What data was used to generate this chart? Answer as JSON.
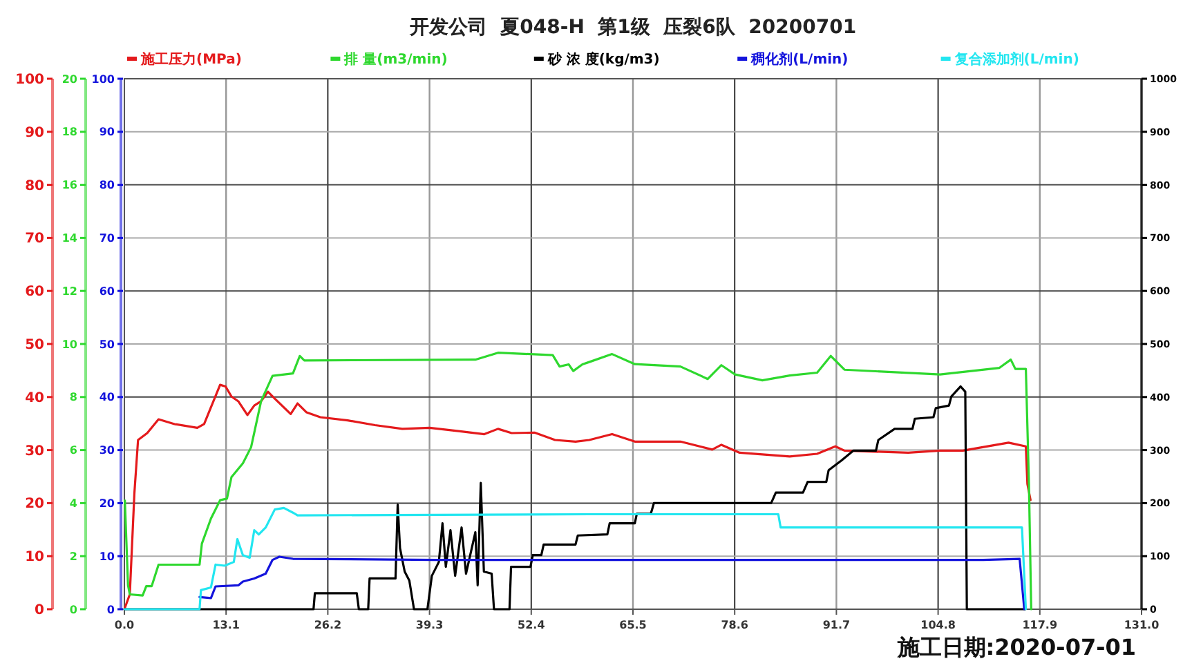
{
  "chart_data": [
    {
      "type": "line",
      "title": "开发公司  夏048-H  第1级  压裂6队  20200701",
      "annotations": [
        "施工日期:2020-07-01"
      ],
      "xlim": [
        0,
        131
      ],
      "xticks": [
        {
          "value": 0,
          "label": "0.0"
        },
        13.1,
        26.2,
        39.3,
        52.4,
        65.5,
        78.6,
        91.7,
        104.8,
        117.9,
        {
          "value": 131,
          "label": "131.0"
        }
      ],
      "ylim": [
        0,
        100
      ],
      "yticks": [
        0,
        10,
        20,
        30,
        40,
        50,
        60,
        70,
        80,
        90,
        100
      ],
      "y3lim": [
        0,
        20
      ],
      "y3ticks": [
        0,
        2,
        4,
        6,
        8,
        10,
        12,
        14,
        16,
        18,
        20
      ],
      "y2lim": [
        0,
        1000
      ],
      "y2ticks": [
        0,
        100,
        200,
        300,
        400,
        500,
        600,
        700,
        800,
        900,
        1000
      ],
      "grid": true,
      "legend": "top",
      "series": [
        {
          "name": "施工压力(MPa)",
          "color": "#e41a1c",
          "axis": "y",
          "x": [
            0,
            0.7,
            1.29,
            1.76,
            2.94,
            4.4,
            6.46,
            9.39,
            10.27,
            12.33,
            13.03,
            13.79,
            14.67,
            15.85,
            16.73,
            17.61,
            18.49,
            19.37,
            21.42,
            22.3,
            23.47,
            25.23,
            28.76,
            32.28,
            35.8,
            39.32,
            42.84,
            46.36,
            48.12,
            49.88,
            52.82,
            55.47,
            58.11,
            59.87,
            62.81,
            65.74,
            71.61,
            75.71,
            76.89,
            79.24,
            85.69,
            89.22,
            91.56,
            92.74,
            100.95,
            105.06,
            108,
            113.87,
            116.1,
            116.3,
            116.7
          ],
          "values": [
            0,
            2.8,
            21.9,
            31.9,
            33.2,
            35.8,
            34.9,
            34.2,
            34.9,
            42.3,
            42,
            40.1,
            39.2,
            36.6,
            38.4,
            39.2,
            41,
            39.7,
            36.8,
            38.8,
            37.1,
            36.2,
            35.6,
            34.7,
            34,
            34.2,
            33.6,
            33,
            34,
            33.2,
            33.3,
            31.9,
            31.6,
            31.9,
            33,
            31.6,
            31.6,
            30.1,
            31,
            29.5,
            28.8,
            29.3,
            30.7,
            29.9,
            29.5,
            29.9,
            29.9,
            31.4,
            30.7,
            23.6,
            20.6
          ]
        },
        {
          "name": "排  量(m3/min)",
          "color": "#2ed82e",
          "axis": "y3",
          "x": [
            0.06,
            0.47,
            0.7,
            2.35,
            2.82,
            3.52,
            4.4,
            9.68,
            9.98,
            11.15,
            12.33,
            13.21,
            13.79,
            15.26,
            16.32,
            17.61,
            19.08,
            21.71,
            22.59,
            23.18,
            45.2,
            48.12,
            55.17,
            56.05,
            57.23,
            57.81,
            58.99,
            59.87,
            62.81,
            65.74,
            71.61,
            75.13,
            76.89,
            78.65,
            82.17,
            85.69,
            89.22,
            90.98,
            92.74,
            105.06,
            112.7,
            114.16,
            114.75,
            116.1,
            116.5,
            116.79
          ],
          "values": [
            4.1,
            0.9,
            0.56,
            0.52,
            0.87,
            0.87,
            1.68,
            1.68,
            2.47,
            3.42,
            4.11,
            4.17,
            4.98,
            5.5,
            6.11,
            7.85,
            8.8,
            8.89,
            9.55,
            9.38,
            9.41,
            9.67,
            9.58,
            9.15,
            9.23,
            8.98,
            9.23,
            9.32,
            9.62,
            9.24,
            9.15,
            8.68,
            9.2,
            8.85,
            8.63,
            8.81,
            8.92,
            9.55,
            9.03,
            8.85,
            9.1,
            9.41,
            9.06,
            9.06,
            4.72,
            0
          ]
        },
        {
          "name": "砂 浓 度(kg/m3)",
          "color": "#000000",
          "axis": "y2",
          "x": [
            0,
            24.36,
            24.53,
            29.93,
            30.2,
            31.4,
            31.58,
            34.92,
            35.2,
            35.5,
            36.1,
            36.7,
            37.3,
            39.03,
            39.6,
            40.5,
            40.97,
            41.4,
            42,
            42.6,
            43.43,
            44,
            45.2,
            45.5,
            45.9,
            46.3,
            47.3,
            47.6,
            49.6,
            49.8,
            52.3,
            52.6,
            53.7,
            54,
            58.1,
            58.4,
            62.2,
            62.5,
            65.74,
            66,
            67.8,
            68.2,
            83.3,
            83.9,
            87.4,
            88,
            90.4,
            90.7,
            92.4,
            93.9,
            96.8,
            97.1,
            99.2,
            101.5,
            101.8,
            104.2,
            104.5,
            106.2,
            106.5,
            107.7,
            108.3,
            108.5,
            116
          ],
          "values": [
            0,
            0,
            30,
            30,
            0,
            0,
            58,
            58,
            197,
            115,
            71,
            54,
            0,
            0,
            63,
            89,
            162,
            80,
            149,
            63,
            154,
            67,
            145,
            45,
            238,
            71,
            67,
            0,
            0,
            80,
            80,
            102,
            102,
            122,
            122,
            139,
            141,
            162,
            162,
            180,
            180,
            200,
            200,
            220,
            220,
            240,
            240,
            262,
            281,
            299,
            299,
            319,
            340,
            340,
            359,
            362,
            379,
            384,
            401,
            420,
            410,
            0,
            0
          ]
        }
      ]
    },
    {
      "type": "line",
      "xlim": [
        0,
        131
      ],
      "ylim": [
        0,
        100
      ],
      "yticks": [
        0,
        10,
        20,
        30,
        40,
        50,
        60,
        70,
        80,
        90,
        100
      ],
      "tick_labels": "y",
      "legend": "top",
      "series": [
        {
          "name": "稠化剂(L/min)",
          "color": "#1414dc",
          "x": [
            9.68,
            11.15,
            11.74,
            14.67,
            15.26,
            16.73,
            18.2,
            19.08,
            19.96,
            21.71,
            40,
            60,
            80,
            100,
            110.6,
            115.3,
            115.9
          ],
          "values": [
            2.3,
            2.1,
            4.3,
            4.5,
            5.2,
            5.8,
            6.7,
            9.3,
            9.9,
            9.5,
            9.3,
            9.3,
            9.3,
            9.3,
            9.3,
            9.5,
            0
          ]
        },
        {
          "name": "复合添加剂(L/min)",
          "color": "#22e6f0",
          "x": [
            0,
            9.68,
            9.86,
            11.15,
            11.74,
            12.91,
            14.09,
            14.55,
            15.26,
            16.14,
            16.73,
            17.32,
            18.2,
            19.37,
            20.54,
            21.71,
            22.3,
            59.87,
            84.22,
            84.52,
            115.6,
            116.1
          ],
          "values": [
            0,
            0,
            3.6,
            4.1,
            8.4,
            8.2,
            8.9,
            13.2,
            10.2,
            9.7,
            14.9,
            14.1,
            15.4,
            18.8,
            19.1,
            18.2,
            17.7,
            17.9,
            17.9,
            15.4,
            15.4,
            0
          ]
        }
      ]
    }
  ]
}
